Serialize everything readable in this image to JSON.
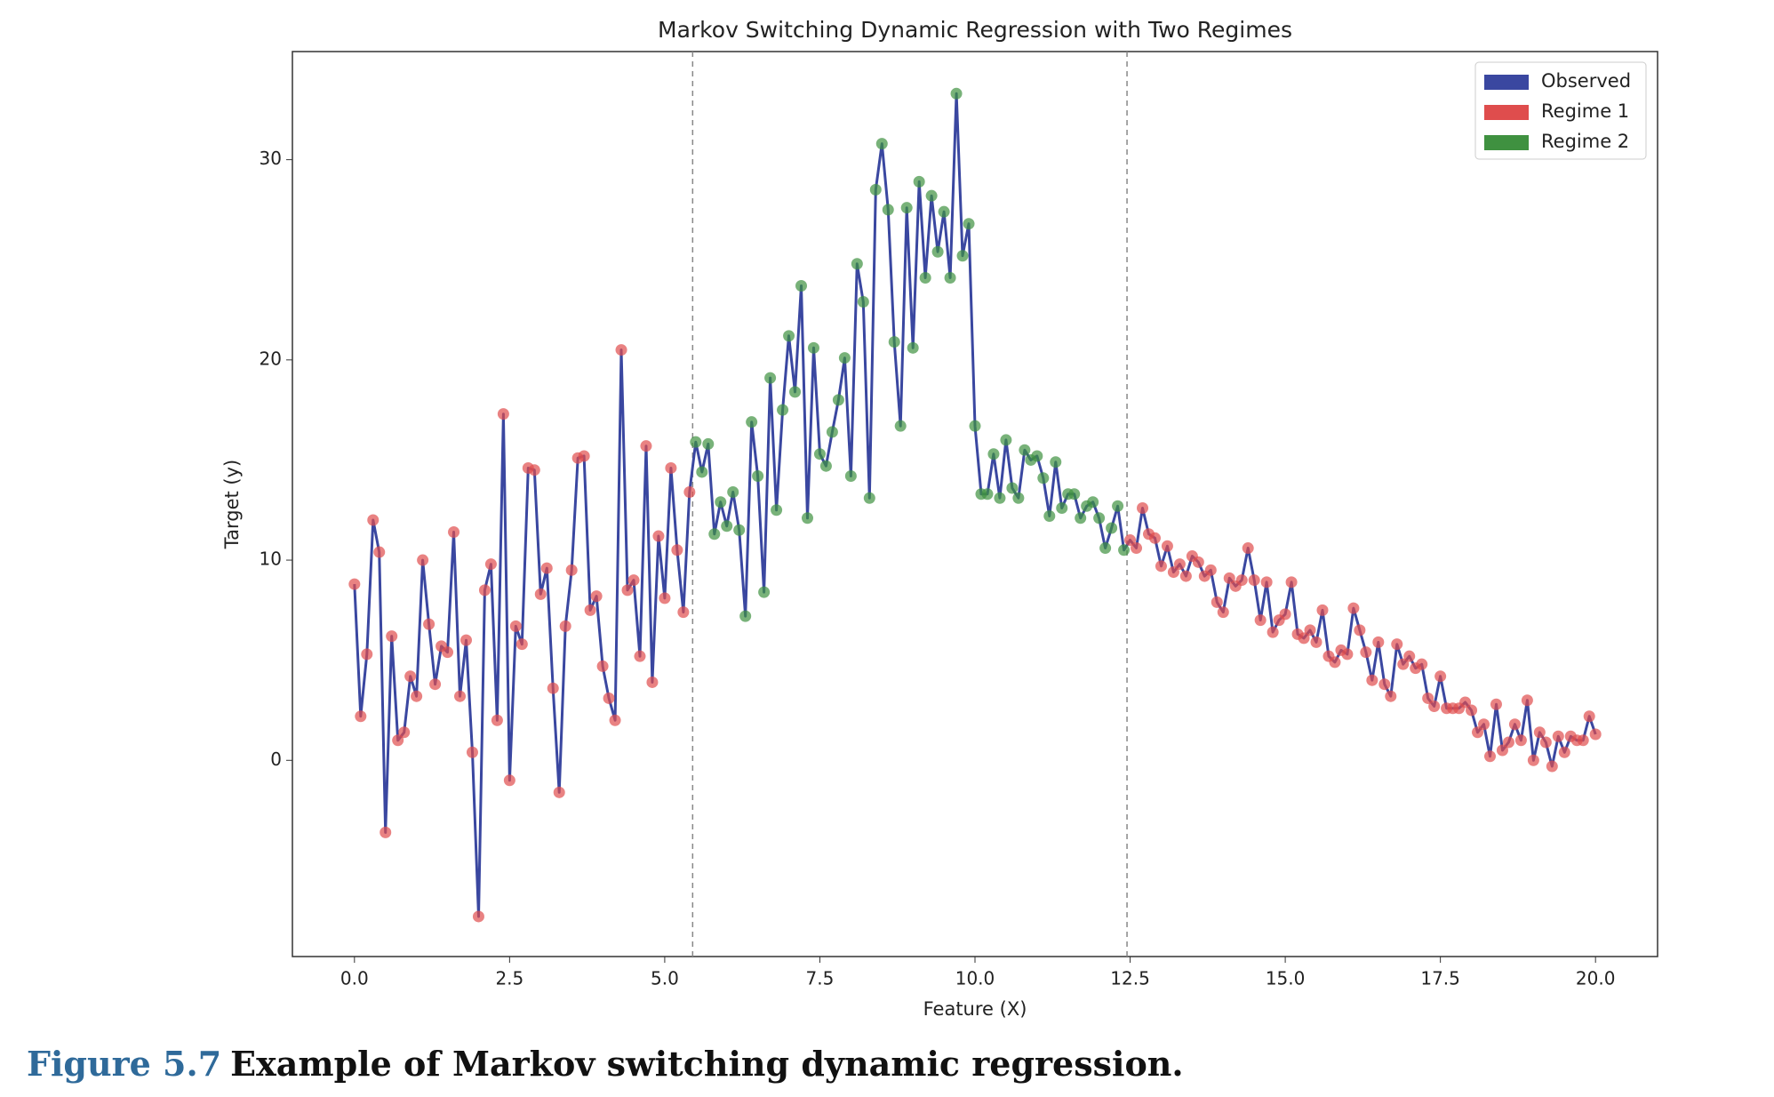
{
  "chart_data": {
    "type": "line",
    "title": "Markov Switching Dynamic Regression with Two Regimes",
    "x_label": "Feature (X)",
    "y_label": "Target (y)",
    "xlim": [
      -1,
      21
    ],
    "ylim": [
      -9.8,
      35.4
    ],
    "xticks": [
      {
        "value": 0,
        "label": "0.0"
      },
      2.5,
      {
        "value": 5,
        "label": "5.0"
      },
      7.5,
      {
        "value": 10,
        "label": "10.0"
      },
      12.5,
      {
        "value": 15,
        "label": "15.0"
      },
      17.5,
      {
        "value": 20,
        "label": "20.0"
      }
    ],
    "yticks": [
      0,
      10,
      20,
      30
    ],
    "grid": false,
    "legend": "upper right",
    "regime_switches": [
      5.45,
      12.45
    ],
    "regime_sequence": [
      1,
      2,
      1
    ],
    "x": [
      0,
      0.1,
      0.2,
      0.3,
      0.4,
      0.5,
      0.6,
      0.7,
      0.8,
      0.9,
      1,
      1.1,
      1.2,
      1.3,
      1.4,
      1.5,
      1.6,
      1.7,
      1.8,
      1.9,
      2,
      2.1,
      2.2,
      2.3,
      2.4,
      2.5,
      2.6,
      2.7,
      2.8,
      2.9,
      3,
      3.1,
      3.2,
      3.3,
      3.4,
      3.5,
      3.6,
      3.7,
      3.8,
      3.9,
      4,
      4.1,
      4.2,
      4.3,
      4.4,
      4.5,
      4.6,
      4.7,
      4.8,
      4.9,
      5,
      5.1,
      5.2,
      5.3,
      5.4,
      5.5,
      5.6,
      5.7,
      5.8,
      5.9,
      6,
      6.1,
      6.2,
      6.3,
      6.4,
      6.5,
      6.6,
      6.7,
      6.8,
      6.9,
      7,
      7.1,
      7.2,
      7.3,
      7.4,
      7.5,
      7.6,
      7.7,
      7.8,
      7.9,
      8,
      8.1,
      8.2,
      8.3,
      8.4,
      8.5,
      8.6,
      8.7,
      8.8,
      8.9,
      9,
      9.1,
      9.2,
      9.3,
      9.4,
      9.5,
      9.6,
      9.7,
      9.8,
      9.9,
      10,
      10.1,
      10.2,
      10.3,
      10.4,
      10.5,
      10.6,
      10.7,
      10.8,
      10.9,
      11,
      11.1,
      11.2,
      11.3,
      11.4,
      11.5,
      11.6,
      11.7,
      11.8,
      11.9,
      12,
      12.1,
      12.2,
      12.3,
      12.4,
      12.5,
      12.6,
      12.7,
      12.8,
      12.9,
      13,
      13.1,
      13.2,
      13.3,
      13.4,
      13.5,
      13.6,
      13.7,
      13.8,
      13.9,
      14,
      14.1,
      14.2,
      14.3,
      14.4,
      14.5,
      14.6,
      14.7,
      14.8,
      14.9,
      15,
      15.1,
      15.2,
      15.3,
      15.4,
      15.5,
      15.6,
      15.7,
      15.8,
      15.9,
      16,
      16.1,
      16.2,
      16.3,
      16.4,
      16.5,
      16.6,
      16.7,
      16.8,
      16.9,
      17,
      17.1,
      17.2,
      17.3,
      17.4,
      17.5,
      17.6,
      17.7,
      17.8,
      17.9,
      18,
      18.1,
      18.2,
      18.3,
      18.4,
      18.5,
      18.6,
      18.7,
      18.8,
      18.9,
      19,
      19.1,
      19.2,
      19.3,
      19.4,
      19.5,
      19.6,
      19.7,
      19.8,
      19.9,
      20
    ],
    "series": [
      {
        "name": "Observed",
        "color": "#3a47a0",
        "values": [
          8.8,
          2.2,
          5.3,
          12,
          10.4,
          -3.6,
          6.2,
          1,
          1.4,
          4.2,
          3.2,
          10,
          6.8,
          3.8,
          5.7,
          5.4,
          11.4,
          3.2,
          6,
          0.4,
          -7.8,
          8.5,
          9.8,
          2,
          17.3,
          -1,
          6.7,
          5.8,
          14.6,
          14.5,
          8.3,
          9.6,
          3.6,
          -1.6,
          6.7,
          9.5,
          15.1,
          15.2,
          7.5,
          8.2,
          4.7,
          3.1,
          2,
          20.5,
          8.5,
          9,
          5.2,
          15.7,
          3.9,
          11.2,
          8.1,
          14.6,
          10.5,
          7.4,
          13.4,
          15.9,
          14.4,
          15.8,
          11.3,
          12.9,
          11.7,
          13.4,
          11.5,
          7.2,
          16.9,
          14.2,
          8.4,
          19.1,
          12.5,
          17.5,
          21.2,
          18.4,
          23.7,
          12.1,
          20.6,
          15.3,
          14.7,
          16.4,
          18,
          20.1,
          14.2,
          24.8,
          22.9,
          13.1,
          28.5,
          30.8,
          27.5,
          20.9,
          16.7,
          27.6,
          20.6,
          28.9,
          24.1,
          28.2,
          25.4,
          27.4,
          24.1,
          33.3,
          25.2,
          26.8,
          16.7,
          13.3,
          13.3,
          15.3,
          13.1,
          16,
          13.6,
          13.1,
          15.5,
          15,
          15.2,
          14.1,
          12.2,
          14.9,
          12.6,
          13.3,
          13.3,
          12.1,
          12.7,
          12.9,
          12.1,
          10.6,
          11.6,
          12.7,
          10.5,
          11,
          10.6,
          12.6,
          11.3,
          11.1,
          9.7,
          10.7,
          9.4,
          9.8,
          9.2,
          10.2,
          9.9,
          9.2,
          9.5,
          7.9,
          7.4,
          9.1,
          8.7,
          9,
          10.6,
          9,
          7,
          8.9,
          6.4,
          7,
          7.3,
          8.9,
          6.3,
          6.1,
          6.5,
          5.9,
          7.5,
          5.2,
          4.9,
          5.5,
          5.3,
          7.6,
          6.5,
          5.4,
          4,
          5.9,
          3.8,
          3.2,
          5.8,
          4.8,
          5.2,
          4.6,
          4.8,
          3.1,
          2.7,
          4.2,
          2.6,
          2.6,
          2.6,
          2.9,
          2.5,
          1.4,
          1.8,
          0.2,
          2.8,
          0.5,
          0.9,
          1.8,
          1,
          3,
          0,
          1.4,
          0.9,
          -0.3,
          1.2,
          0.4,
          1.2,
          1,
          1,
          2.2,
          1.3
        ]
      },
      {
        "name": "Regime 1",
        "color": "#df4d4d"
      },
      {
        "name": "Regime 2",
        "color": "#3f9140"
      }
    ]
  },
  "caption": {
    "label": "Figure 5.7",
    "text": "Example of Markov switching dynamic regression."
  }
}
